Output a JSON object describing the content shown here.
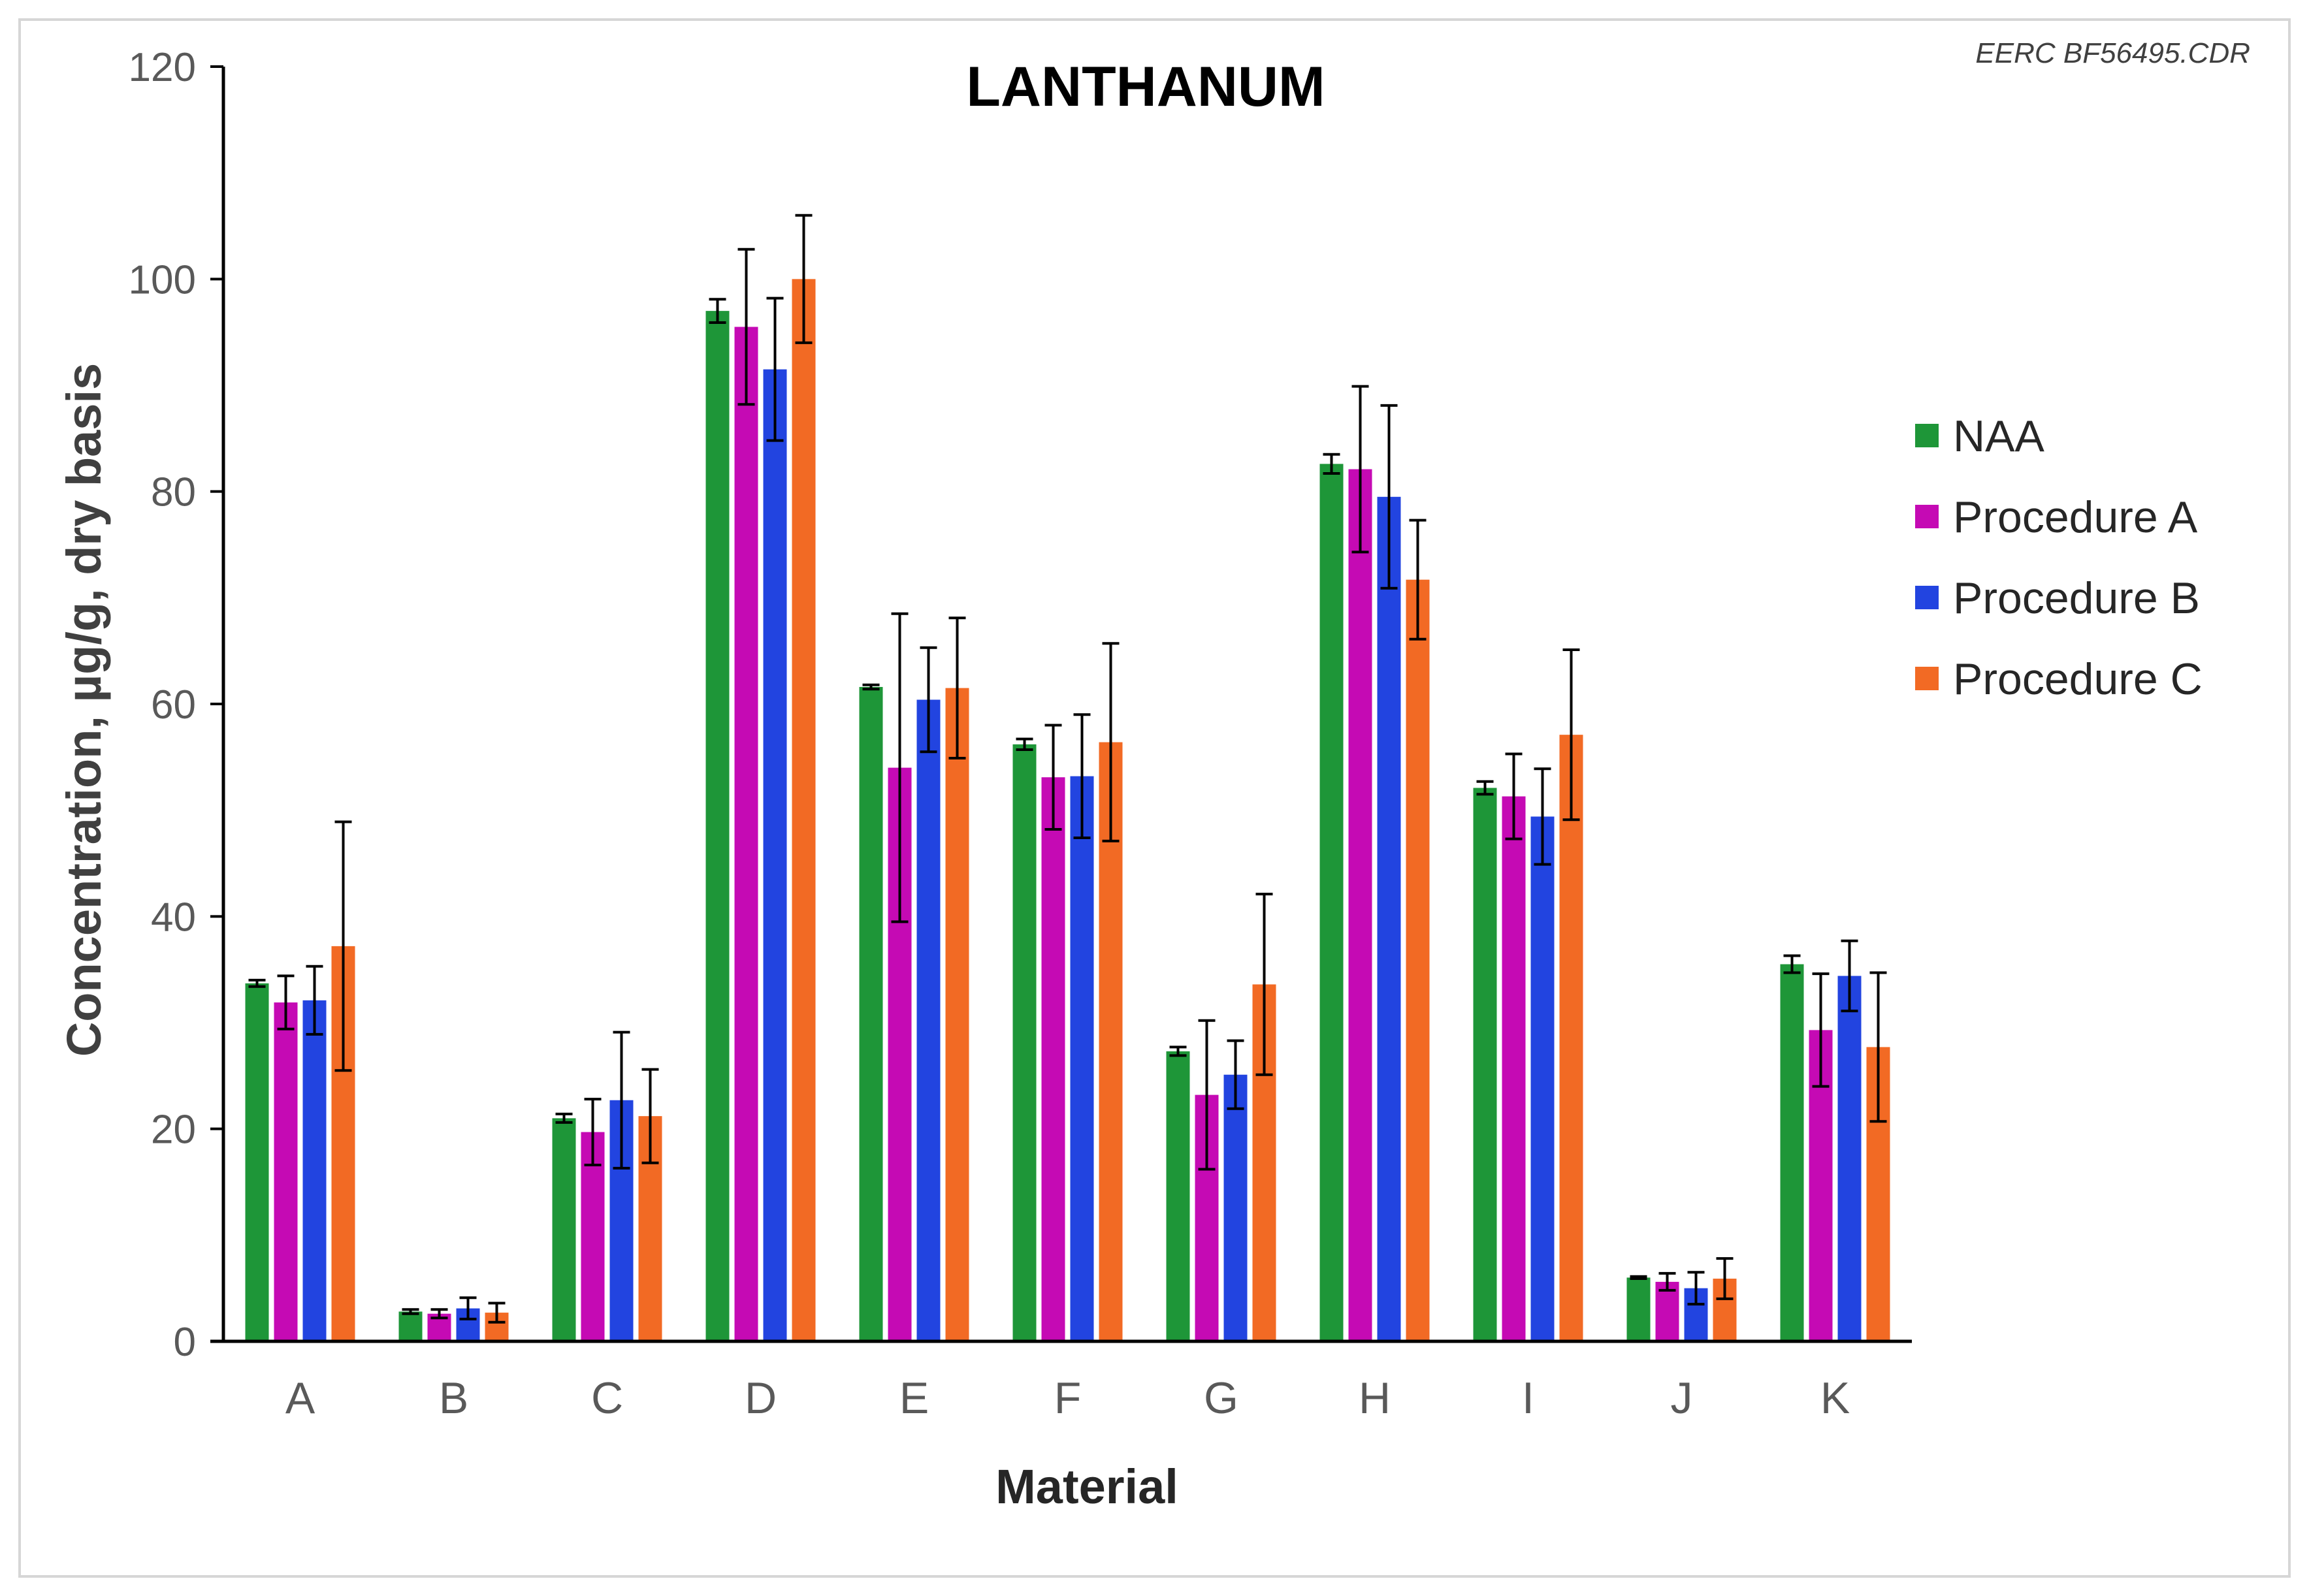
{
  "credit": "EERC BF56495.CDR",
  "chart_data": {
    "type": "bar",
    "title": "LANTHANUM",
    "xlabel": "Material",
    "ylabel": "Concentration, µg/g, dry basis",
    "ylim": [
      0,
      120
    ],
    "yticks": [
      0,
      20,
      40,
      60,
      80,
      100,
      120
    ],
    "grid": false,
    "legend_position": "right",
    "categories": [
      "A",
      "B",
      "C",
      "D",
      "E",
      "F",
      "G",
      "H",
      "I",
      "J",
      "K"
    ],
    "series": [
      {
        "name": "NAA",
        "color": "#1e9638",
        "values": [
          33.7,
          2.8,
          21.0,
          97.0,
          61.6,
          56.2,
          27.3,
          82.6,
          52.1,
          6.0,
          35.5
        ],
        "errors": [
          0.3,
          0.2,
          0.4,
          1.1,
          0.2,
          0.5,
          0.4,
          0.9,
          0.6,
          0.1,
          0.8
        ]
      },
      {
        "name": "Procedure A",
        "color": "#c50ab4",
        "values": [
          31.9,
          2.6,
          19.7,
          95.5,
          54.0,
          53.1,
          23.2,
          82.1,
          51.3,
          5.6,
          29.3
        ],
        "errors": [
          2.5,
          0.4,
          3.1,
          7.3,
          14.5,
          4.9,
          7.0,
          7.8,
          4.0,
          0.8,
          5.3
        ]
      },
      {
        "name": "Procedure B",
        "color": "#2244e0",
        "values": [
          32.1,
          3.1,
          22.7,
          91.5,
          60.4,
          53.2,
          25.1,
          79.5,
          49.4,
          5.0,
          34.4
        ],
        "errors": [
          3.2,
          1.0,
          6.4,
          6.7,
          4.9,
          5.8,
          3.2,
          8.6,
          4.5,
          1.5,
          3.3
        ]
      },
      {
        "name": "Procedure C",
        "color": "#f26a24",
        "values": [
          37.2,
          2.7,
          21.2,
          100.0,
          61.5,
          56.4,
          33.6,
          71.7,
          57.1,
          5.9,
          27.7
        ],
        "errors": [
          11.7,
          0.9,
          4.4,
          6.0,
          6.6,
          9.3,
          8.5,
          5.6,
          8.0,
          1.9,
          7.0
        ]
      }
    ]
  }
}
